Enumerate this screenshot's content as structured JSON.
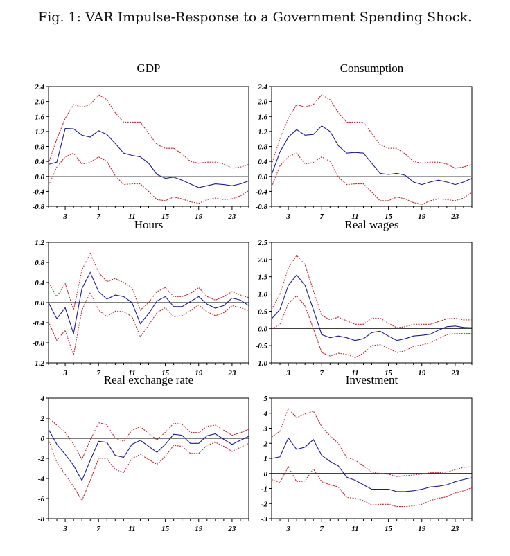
{
  "figure_title": "Fig. 1: VAR Impulse-Response to a Government Spending Shock.",
  "colors": {
    "response": "#1a1a9a",
    "band": "#c0262a",
    "zero_gray": "#808080",
    "zero_black": "#000000"
  },
  "chart_data": [
    {
      "type": "line",
      "title": "GDP",
      "x": [
        1,
        2,
        3,
        4,
        5,
        6,
        7,
        8,
        9,
        10,
        11,
        12,
        13,
        14,
        15,
        16,
        17,
        18,
        19,
        20,
        21,
        22,
        23,
        24,
        25
      ],
      "xticks": [
        3,
        7,
        11,
        15,
        19,
        23
      ],
      "xlim": [
        1,
        25
      ],
      "ylim": [
        -0.8,
        2.4
      ],
      "yticks": [
        -0.8,
        -0.4,
        0.0,
        0.4,
        0.8,
        1.2,
        1.6,
        2.0,
        2.4
      ],
      "ytick_labels": [
        "-0.8",
        "-0.4",
        "0.0",
        "0.4",
        "0.8",
        "1.2",
        "1.6",
        "2.0",
        "2.4"
      ],
      "zero_line": "gray",
      "series": [
        {
          "name": "response",
          "style": "solid",
          "values": [
            0.32,
            0.38,
            1.28,
            1.27,
            1.1,
            1.05,
            1.22,
            1.12,
            0.88,
            0.62,
            0.56,
            0.52,
            0.35,
            0.05,
            -0.05,
            -0.02,
            -0.1,
            -0.2,
            -0.3,
            -0.25,
            -0.2,
            -0.22,
            -0.25,
            -0.2,
            -0.12
          ]
        },
        {
          "name": "upper",
          "style": "dashed",
          "values": [
            0.35,
            1.0,
            1.55,
            1.92,
            1.85,
            1.92,
            2.18,
            2.05,
            1.7,
            1.45,
            1.45,
            1.45,
            1.15,
            0.85,
            0.75,
            0.75,
            0.6,
            0.4,
            0.35,
            0.38,
            0.38,
            0.33,
            0.22,
            0.25,
            0.32
          ]
        },
        {
          "name": "lower",
          "style": "dashed",
          "values": [
            -0.25,
            0.25,
            0.52,
            0.62,
            0.33,
            0.37,
            0.52,
            0.4,
            0.02,
            -0.22,
            -0.2,
            -0.2,
            -0.4,
            -0.62,
            -0.65,
            -0.55,
            -0.6,
            -0.68,
            -0.72,
            -0.62,
            -0.58,
            -0.62,
            -0.6,
            -0.52,
            -0.38
          ]
        }
      ]
    },
    {
      "type": "line",
      "title": "Consumption",
      "x": [
        1,
        2,
        3,
        4,
        5,
        6,
        7,
        8,
        9,
        10,
        11,
        12,
        13,
        14,
        15,
        16,
        17,
        18,
        19,
        20,
        21,
        22,
        23,
        24,
        25
      ],
      "xticks": [
        3,
        7,
        11,
        15,
        19,
        23
      ],
      "xlim": [
        1,
        25
      ],
      "ylim": [
        -0.8,
        2.4
      ],
      "yticks": [
        -0.8,
        -0.4,
        0.0,
        0.4,
        0.8,
        1.2,
        1.6,
        2.0,
        2.4
      ],
      "ytick_labels": [
        "-0.8",
        "-0.4",
        "0.0",
        "0.4",
        "0.8",
        "1.2",
        "1.6",
        "2.0",
        "2.4"
      ],
      "zero_line": "gray",
      "series": [
        {
          "name": "response",
          "style": "solid",
          "values": [
            0.05,
            0.65,
            1.05,
            1.25,
            1.1,
            1.12,
            1.35,
            1.2,
            0.82,
            0.62,
            0.64,
            0.62,
            0.35,
            0.08,
            0.05,
            0.08,
            0.03,
            -0.15,
            -0.22,
            -0.15,
            -0.1,
            -0.15,
            -0.22,
            -0.15,
            -0.05
          ]
        },
        {
          "name": "upper",
          "style": "dashed",
          "values": [
            0.32,
            1.0,
            1.55,
            1.92,
            1.85,
            1.92,
            2.18,
            2.05,
            1.7,
            1.45,
            1.45,
            1.45,
            1.15,
            0.85,
            0.75,
            0.75,
            0.6,
            0.4,
            0.35,
            0.38,
            0.38,
            0.33,
            0.22,
            0.25,
            0.32
          ]
        },
        {
          "name": "lower",
          "style": "dashed",
          "values": [
            -0.28,
            0.28,
            0.52,
            0.62,
            0.33,
            0.37,
            0.52,
            0.4,
            -0.02,
            -0.22,
            -0.2,
            -0.2,
            -0.42,
            -0.65,
            -0.65,
            -0.55,
            -0.6,
            -0.7,
            -0.75,
            -0.65,
            -0.6,
            -0.62,
            -0.65,
            -0.58,
            -0.42
          ]
        }
      ]
    },
    {
      "type": "line",
      "title": "Hours",
      "x": [
        1,
        2,
        3,
        4,
        5,
        6,
        7,
        8,
        9,
        10,
        11,
        12,
        13,
        14,
        15,
        16,
        17,
        18,
        19,
        20,
        21,
        22,
        23,
        24,
        25
      ],
      "xticks": [
        3,
        7,
        11,
        15,
        19,
        23
      ],
      "xlim": [
        1,
        25
      ],
      "ylim": [
        -1.2,
        1.2
      ],
      "yticks": [
        -1.2,
        -0.8,
        -0.4,
        0.0,
        0.4,
        0.8,
        1.2
      ],
      "ytick_labels": [
        "-1.2",
        "-0.8",
        "-0.4",
        "0.0",
        "0.4",
        "0.8",
        "1.2"
      ],
      "zero_line": "black",
      "series": [
        {
          "name": "response",
          "style": "solid",
          "values": [
            0.0,
            -0.32,
            -0.1,
            -0.62,
            0.28,
            0.6,
            0.22,
            0.07,
            0.15,
            0.12,
            0.0,
            -0.42,
            -0.22,
            0.03,
            0.12,
            -0.08,
            -0.08,
            0.02,
            0.12,
            -0.03,
            -0.11,
            -0.06,
            0.09,
            0.05,
            -0.06
          ]
        },
        {
          "name": "upper",
          "style": "dashed",
          "values": [
            0.4,
            0.12,
            0.38,
            -0.15,
            0.65,
            0.98,
            0.6,
            0.42,
            0.48,
            0.4,
            0.3,
            -0.15,
            0.0,
            0.22,
            0.3,
            0.12,
            0.12,
            0.18,
            0.3,
            0.12,
            0.05,
            0.12,
            0.22,
            0.15,
            0.1
          ]
        },
        {
          "name": "lower",
          "style": "dashed",
          "values": [
            -0.38,
            -0.75,
            -0.55,
            -1.05,
            -0.15,
            0.2,
            -0.15,
            -0.28,
            -0.17,
            -0.18,
            -0.28,
            -0.68,
            -0.45,
            -0.2,
            -0.1,
            -0.28,
            -0.26,
            -0.16,
            -0.05,
            -0.18,
            -0.26,
            -0.2,
            -0.06,
            -0.1,
            -0.16
          ]
        }
      ]
    },
    {
      "type": "line",
      "title": "Real wages",
      "x": [
        1,
        2,
        3,
        4,
        5,
        6,
        7,
        8,
        9,
        10,
        11,
        12,
        13,
        14,
        15,
        16,
        17,
        18,
        19,
        20,
        21,
        22,
        23,
        24,
        25
      ],
      "xticks": [
        3,
        7,
        11,
        15,
        19,
        23
      ],
      "xlim": [
        1,
        25
      ],
      "ylim": [
        -1.0,
        2.5
      ],
      "yticks": [
        -1.0,
        -0.5,
        0.0,
        0.5,
        1.0,
        1.5,
        2.0,
        2.5
      ],
      "ytick_labels": [
        "-1.0",
        "-0.5",
        "0.0",
        "0.5",
        "1.0",
        "1.5",
        "2.0",
        "2.5"
      ],
      "zero_line": "black",
      "series": [
        {
          "name": "response",
          "style": "solid",
          "values": [
            0.28,
            0.55,
            1.25,
            1.55,
            1.25,
            0.55,
            -0.18,
            -0.27,
            -0.22,
            -0.27,
            -0.35,
            -0.3,
            -0.12,
            -0.08,
            -0.22,
            -0.35,
            -0.3,
            -0.22,
            -0.2,
            -0.17,
            -0.05,
            0.05,
            0.07,
            0.03,
            0.02
          ]
        },
        {
          "name": "upper",
          "style": "dashed",
          "values": [
            0.55,
            1.0,
            1.75,
            2.12,
            1.85,
            1.1,
            0.38,
            0.25,
            0.33,
            0.22,
            0.12,
            0.12,
            0.3,
            0.3,
            0.15,
            0.02,
            0.05,
            0.12,
            0.12,
            0.12,
            0.2,
            0.28,
            0.3,
            0.25,
            0.25
          ]
        },
        {
          "name": "lower",
          "style": "dashed",
          "values": [
            -0.02,
            0.12,
            0.72,
            0.95,
            0.65,
            0.0,
            -0.7,
            -0.8,
            -0.72,
            -0.75,
            -0.85,
            -0.72,
            -0.5,
            -0.47,
            -0.58,
            -0.7,
            -0.65,
            -0.52,
            -0.48,
            -0.42,
            -0.3,
            -0.18,
            -0.15,
            -0.15,
            -0.15
          ]
        }
      ]
    },
    {
      "type": "line",
      "title": "Real exchange rate",
      "x": [
        1,
        2,
        3,
        4,
        5,
        6,
        7,
        8,
        9,
        10,
        11,
        12,
        13,
        14,
        15,
        16,
        17,
        18,
        19,
        20,
        21,
        22,
        23,
        24,
        25
      ],
      "xticks": [
        3,
        7,
        11,
        15,
        19,
        23
      ],
      "xlim": [
        1,
        25
      ],
      "ylim": [
        -8,
        4
      ],
      "yticks": [
        -8,
        -6,
        -4,
        -2,
        0,
        2,
        4
      ],
      "ytick_labels": [
        "-8",
        "-6",
        "-4",
        "-2",
        "0",
        "2",
        "4"
      ],
      "zero_line": "black",
      "series": [
        {
          "name": "response",
          "style": "solid",
          "values": [
            0.9,
            -0.6,
            -1.6,
            -2.7,
            -4.2,
            -2.2,
            -0.3,
            -0.4,
            -1.7,
            -1.9,
            -0.6,
            -0.2,
            -0.8,
            -1.4,
            -0.6,
            0.4,
            0.3,
            -0.5,
            -0.5,
            0.25,
            0.45,
            -0.1,
            -0.6,
            -0.2,
            0.2
          ]
        },
        {
          "name": "upper",
          "style": "dashed",
          "values": [
            2.05,
            1.3,
            0.6,
            -0.6,
            -2.1,
            -0.2,
            1.55,
            1.35,
            0.0,
            -0.3,
            0.8,
            1.15,
            0.5,
            -0.15,
            0.6,
            1.5,
            1.4,
            0.6,
            0.55,
            1.2,
            1.3,
            0.8,
            0.3,
            0.55,
            0.9
          ]
        },
        {
          "name": "lower",
          "style": "dashed",
          "values": [
            -0.1,
            -2.4,
            -3.6,
            -4.8,
            -6.2,
            -4.2,
            -2.0,
            -2.0,
            -3.1,
            -3.4,
            -2.0,
            -1.6,
            -2.1,
            -2.6,
            -1.8,
            -0.7,
            -0.8,
            -1.5,
            -1.5,
            -0.7,
            -0.4,
            -0.8,
            -1.3,
            -0.9,
            -0.5
          ]
        }
      ]
    },
    {
      "type": "line",
      "title": "Investment",
      "x": [
        1,
        2,
        3,
        4,
        5,
        6,
        7,
        8,
        9,
        10,
        11,
        12,
        13,
        14,
        15,
        16,
        17,
        18,
        19,
        20,
        21,
        22,
        23,
        24,
        25
      ],
      "xticks": [
        3,
        7,
        11,
        15,
        19,
        23
      ],
      "xlim": [
        1,
        25
      ],
      "ylim": [
        -3,
        5
      ],
      "yticks": [
        -3,
        -2,
        -1,
        0,
        1,
        2,
        3,
        4,
        5
      ],
      "ytick_labels": [
        "-3",
        "-2",
        "-1",
        "0",
        "1",
        "2",
        "3",
        "4",
        "5"
      ],
      "zero_line": "black",
      "series": [
        {
          "name": "response",
          "style": "solid",
          "values": [
            1.0,
            1.1,
            2.35,
            1.6,
            1.75,
            2.25,
            1.2,
            0.8,
            0.5,
            -0.25,
            -0.45,
            -0.75,
            -1.05,
            -1.05,
            -1.05,
            -1.2,
            -1.2,
            -1.15,
            -1.05,
            -0.9,
            -0.85,
            -0.75,
            -0.55,
            -0.4,
            -0.28
          ]
        },
        {
          "name": "upper",
          "style": "dashed",
          "values": [
            2.4,
            2.8,
            4.3,
            3.7,
            3.95,
            4.15,
            3.1,
            2.5,
            2.0,
            1.05,
            0.9,
            0.5,
            0.1,
            0.0,
            -0.05,
            -0.2,
            -0.15,
            -0.1,
            -0.05,
            0.05,
            0.05,
            0.1,
            0.25,
            0.4,
            0.45
          ]
        },
        {
          "name": "lower",
          "style": "dashed",
          "values": [
            -0.4,
            -0.6,
            0.45,
            -0.55,
            -0.5,
            0.3,
            -0.55,
            -0.75,
            -0.9,
            -1.6,
            -1.65,
            -1.8,
            -2.1,
            -2.05,
            -2.05,
            -2.2,
            -2.2,
            -2.15,
            -2.05,
            -1.8,
            -1.65,
            -1.55,
            -1.3,
            -1.15,
            -0.95
          ]
        }
      ]
    }
  ]
}
